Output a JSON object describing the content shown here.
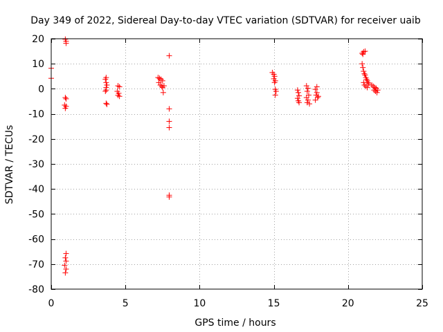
{
  "chart_data": {
    "type": "scatter",
    "title": "Day 349 of 2022, Sidereal Day-to-day VTEC variation (SDTVAR) for receiver uaib",
    "xlabel": "GPS time / hours",
    "ylabel": "SDTVAR / TECUs",
    "xlim": [
      0,
      25
    ],
    "ylim": [
      -80,
      20
    ],
    "xticks": [
      0,
      5,
      10,
      15,
      20,
      25
    ],
    "yticks": [
      20,
      10,
      0,
      -10,
      -20,
      -30,
      -40,
      -50,
      -60,
      -70,
      -80
    ],
    "grid": true,
    "marker": "+",
    "color": "#ff0000",
    "series": [
      {
        "name": "SDTVAR",
        "points": [
          [
            0.0,
            8.2
          ],
          [
            0.0,
            4.2
          ],
          [
            0.95,
            19.8
          ],
          [
            1.0,
            19.0
          ],
          [
            1.0,
            18.2
          ],
          [
            0.95,
            -3.5
          ],
          [
            1.0,
            -4.0
          ],
          [
            0.9,
            -6.5
          ],
          [
            1.0,
            -7.0
          ],
          [
            0.95,
            -7.8
          ],
          [
            1.0,
            -65.8
          ],
          [
            0.95,
            -67.5
          ],
          [
            1.0,
            -68.8
          ],
          [
            0.9,
            -70.5
          ],
          [
            1.0,
            -72.0
          ],
          [
            0.95,
            -73.5
          ],
          [
            3.7,
            4.5
          ],
          [
            3.65,
            3.8
          ],
          [
            3.7,
            2.5
          ],
          [
            3.75,
            1.5
          ],
          [
            3.7,
            0.5
          ],
          [
            3.7,
            -0.5
          ],
          [
            3.65,
            -1.0
          ],
          [
            3.7,
            -5.8
          ],
          [
            3.75,
            -6.2
          ],
          [
            4.5,
            1.2
          ],
          [
            4.6,
            0.8
          ],
          [
            4.45,
            -1.0
          ],
          [
            4.55,
            -1.8
          ],
          [
            4.5,
            -2.6
          ],
          [
            4.6,
            -3.0
          ],
          [
            7.2,
            4.5
          ],
          [
            7.3,
            4.2
          ],
          [
            7.4,
            3.8
          ],
          [
            7.5,
            3.2
          ],
          [
            7.25,
            2.5
          ],
          [
            7.35,
            1.5
          ],
          [
            7.45,
            1.0
          ],
          [
            7.5,
            0.5
          ],
          [
            7.6,
            1.2
          ],
          [
            7.55,
            -1.5
          ],
          [
            7.95,
            13.2
          ],
          [
            7.95,
            -8.0
          ],
          [
            7.95,
            -13.0
          ],
          [
            7.95,
            -15.5
          ],
          [
            7.95,
            -42.5
          ],
          [
            7.95,
            -43.2
          ],
          [
            14.9,
            6.5
          ],
          [
            15.0,
            5.8
          ],
          [
            15.05,
            5.0
          ],
          [
            15.0,
            4.0
          ],
          [
            15.1,
            3.2
          ],
          [
            15.05,
            2.5
          ],
          [
            15.1,
            -0.2
          ],
          [
            15.15,
            -1.0
          ],
          [
            15.1,
            -2.5
          ],
          [
            16.6,
            -0.5
          ],
          [
            16.65,
            -1.5
          ],
          [
            16.7,
            -2.8
          ],
          [
            16.6,
            -3.8
          ],
          [
            16.65,
            -4.8
          ],
          [
            16.7,
            -5.5
          ],
          [
            17.2,
            1.2
          ],
          [
            17.3,
            0.2
          ],
          [
            17.25,
            -1.0
          ],
          [
            17.35,
            -2.5
          ],
          [
            17.2,
            -3.5
          ],
          [
            17.3,
            -4.5
          ],
          [
            17.25,
            -5.5
          ],
          [
            17.4,
            -6.0
          ],
          [
            17.8,
            -0.2
          ],
          [
            17.9,
            -1.5
          ],
          [
            17.85,
            -2.5
          ],
          [
            17.95,
            -3.5
          ],
          [
            17.8,
            -4.5
          ],
          [
            17.9,
            0.8
          ],
          [
            18.0,
            -3.0
          ],
          [
            20.95,
            14.2
          ],
          [
            21.05,
            14.8
          ],
          [
            21.15,
            15.0
          ],
          [
            21.0,
            13.8
          ],
          [
            20.95,
            10.0
          ],
          [
            21.0,
            8.5
          ],
          [
            21.05,
            7.0
          ],
          [
            21.1,
            6.0
          ],
          [
            21.15,
            5.5
          ],
          [
            21.2,
            4.5
          ],
          [
            21.25,
            3.8
          ],
          [
            21.3,
            3.2
          ],
          [
            21.35,
            2.5
          ],
          [
            21.4,
            2.0
          ],
          [
            21.05,
            2.5
          ],
          [
            21.1,
            1.5
          ],
          [
            21.2,
            1.0
          ],
          [
            21.3,
            0.5
          ],
          [
            21.6,
            1.5
          ],
          [
            21.7,
            1.0
          ],
          [
            21.8,
            0.5
          ],
          [
            21.75,
            -0.5
          ],
          [
            21.85,
            -1.0
          ],
          [
            21.9,
            0.2
          ],
          [
            22.0,
            -0.5
          ],
          [
            21.95,
            -1.5
          ]
        ]
      }
    ]
  }
}
